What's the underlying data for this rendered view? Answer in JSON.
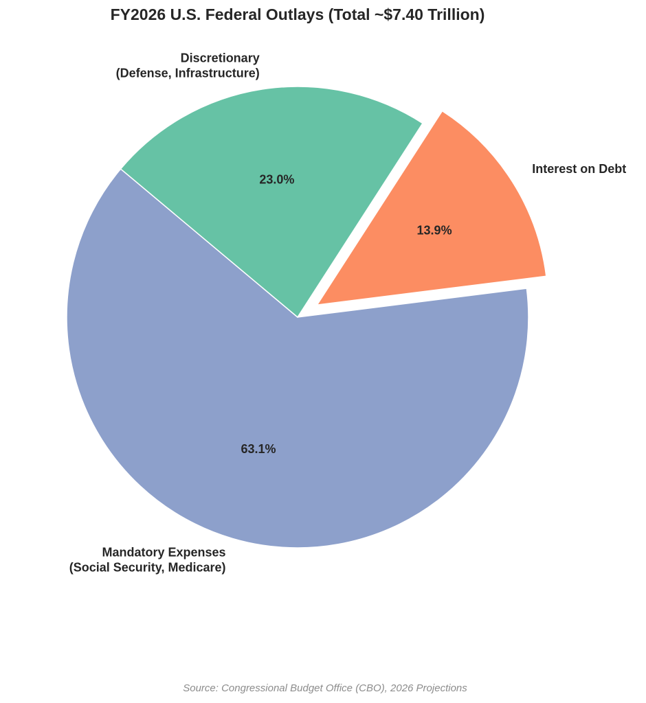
{
  "chart_data": {
    "type": "pie",
    "title": "FY2026 U.S. Federal Outlays (Total ~$7.40 Trillion)",
    "categories": [
      [
        "Mandatory Expenses",
        "(Social Security, Medicare)"
      ],
      [
        "Interest on Debt"
      ],
      [
        "Discretionary",
        "(Defense, Infrastructure)"
      ]
    ],
    "values": [
      63.1,
      13.9,
      23.0
    ],
    "value_labels": [
      "63.1%",
      "13.9%",
      "23.0%"
    ],
    "colors": [
      "#8da0cb",
      "#fc8d62",
      "#66c2a5"
    ],
    "explode": [
      0,
      0.1,
      0
    ],
    "start_angle": 140,
    "source": "Source: Congressional Budget Office (CBO), 2026 Projections"
  }
}
